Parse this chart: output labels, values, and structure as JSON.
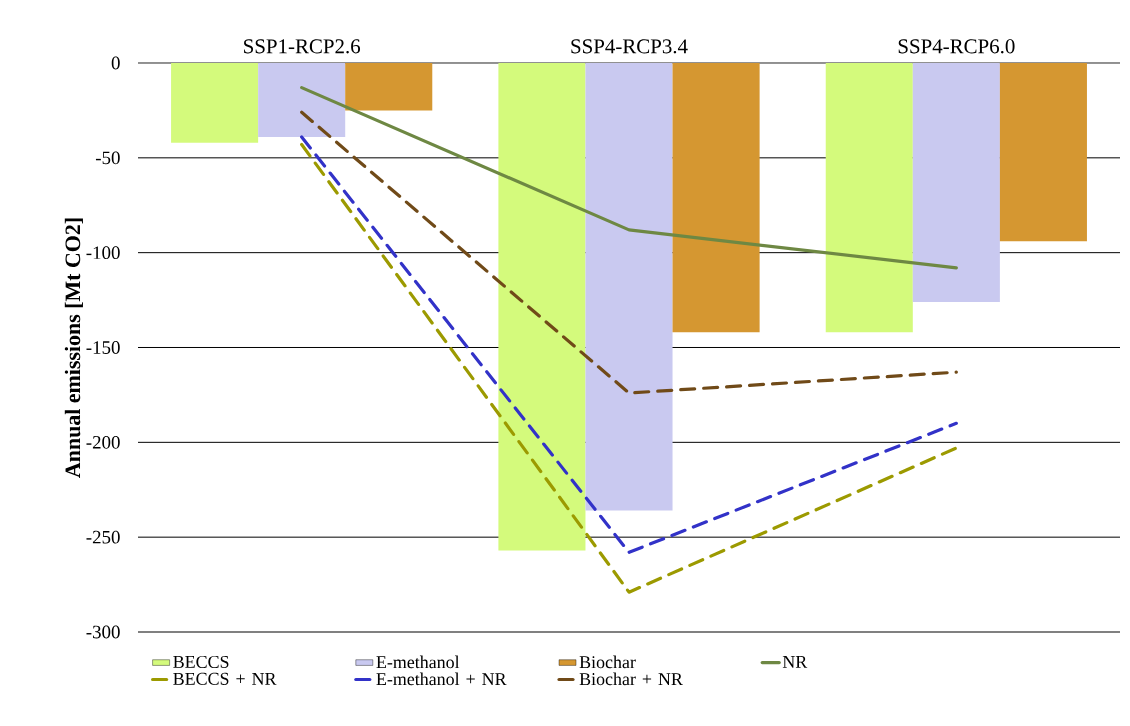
{
  "chart_data": {
    "type": "bar",
    "ylabel": "Annual emissions [Mt CO2]",
    "categories": [
      "SSP1-RCP2.6",
      "SSP4-RCP3.4",
      "SSP4-RCP6.0"
    ],
    "ylim": [
      -300,
      0
    ],
    "yticks": [
      -300,
      -250,
      -200,
      -150,
      -100,
      -50,
      0
    ],
    "grid": "y",
    "legend": "bottom",
    "series": [
      {
        "name": "BECCS",
        "color": "#d4fa7c",
        "values": [
          -42,
          -257,
          -142
        ]
      },
      {
        "name": "E-methanol",
        "color": "#c9c9f0",
        "values": [
          -39,
          -236,
          -126
        ]
      },
      {
        "name": "Biochar",
        "color": "#d59731",
        "values": [
          -25,
          -142,
          -94
        ]
      },
      {
        "name": "NR",
        "type": "line",
        "color": "#6e8843",
        "line_style": "solid",
        "values": [
          -13,
          -88,
          -108
        ]
      },
      {
        "name": "BECCS + NR",
        "type": "line",
        "color": "#9c9a00",
        "line_style": "dashed",
        "values": [
          -43,
          -279,
          -203
        ]
      },
      {
        "name": "E-methanol + NR",
        "type": "line",
        "color": "#3232c8",
        "line_style": "dashed",
        "values": [
          -39,
          -258,
          -190
        ]
      },
      {
        "name": "Biochar + NR",
        "type": "line",
        "color": "#704a18",
        "line_style": "dashed",
        "values": [
          -26,
          -174,
          -163
        ]
      }
    ]
  }
}
